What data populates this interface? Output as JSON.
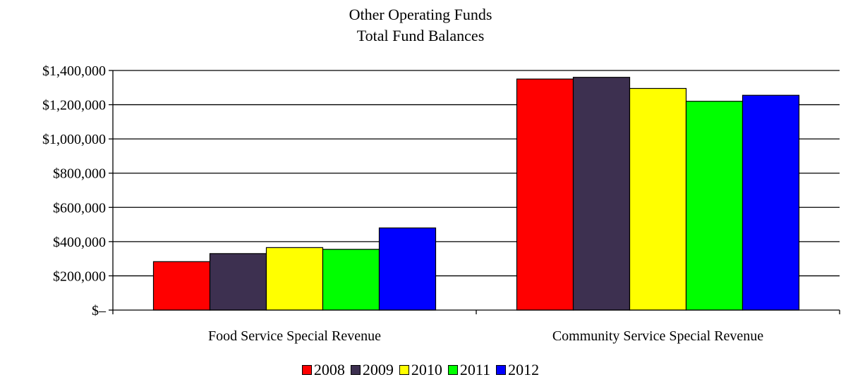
{
  "chart_data": {
    "type": "bar",
    "title": "Other Operating Funds",
    "subtitle": "Total Fund Balances",
    "categories": [
      "Food Service Special Revenue",
      "Community Service Special Revenue"
    ],
    "series": [
      {
        "name": "2008",
        "color": "#ff0000",
        "values": [
          283000,
          1350000
        ]
      },
      {
        "name": "2009",
        "color": "#3d3050",
        "values": [
          330000,
          1360000
        ]
      },
      {
        "name": "2010",
        "color": "#ffff00",
        "values": [
          365000,
          1295000
        ]
      },
      {
        "name": "2011",
        "color": "#00ff00",
        "values": [
          355000,
          1220000
        ]
      },
      {
        "name": "2012",
        "color": "#0000ff",
        "values": [
          480000,
          1255000
        ]
      }
    ],
    "ylim": [
      0,
      1400000
    ],
    "yticks": [
      0,
      200000,
      400000,
      600000,
      800000,
      1000000,
      1200000,
      1400000
    ],
    "ytick_labels": [
      "$–",
      "$200,000",
      "$400,000",
      "$600,000",
      "$800,000",
      "$1,000,000",
      "$1,200,000",
      "$1,400,000"
    ],
    "grid": true,
    "legend_position": "bottom"
  }
}
